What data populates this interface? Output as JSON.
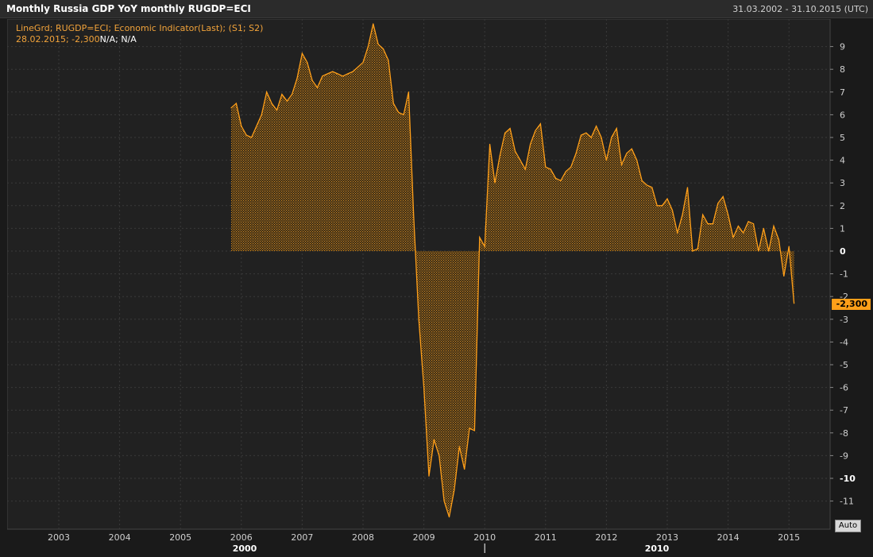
{
  "header": {
    "title": "Monthly Russia GDP YoY monthly RUGDP=ECI",
    "date_range": "31.03.2002 - 31.10.2015 (UTC)"
  },
  "legend": {
    "line1": "LineGrd; RUGDP=ECI; Economic Indicator(Last); (S1; S2)",
    "line2_value": "28.02.2015; -2,300",
    "line2_na": "N/A; N/A"
  },
  "last_value_label": "-2,300",
  "auto_button_label": "Auto",
  "colors": {
    "background": "#212121",
    "grid": "#3a3a3a",
    "series": "#ff9f19",
    "text": "#d0d0d0"
  },
  "chart_data": {
    "type": "area",
    "title": "Monthly Russia GDP YoY monthly RUGDP=ECI",
    "xlabel": "",
    "ylabel": "",
    "ylim": [
      -12,
      10
    ],
    "y_ticks": [
      9,
      8,
      7,
      6,
      5,
      4,
      3,
      2,
      1,
      0,
      -1,
      -2,
      -3,
      -4,
      -5,
      -6,
      -7,
      -8,
      -9,
      -10,
      -11
    ],
    "x_ticks": [
      "2003",
      "2004",
      "2005",
      "2006",
      "2007",
      "2008",
      "2009",
      "2010",
      "2011",
      "2012",
      "2013",
      "2014",
      "2015"
    ],
    "decade_labels": [
      "2000",
      "2010"
    ],
    "grid": true,
    "series": [
      {
        "name": "RUGDP=ECI",
        "x": [
          "2005-11",
          "2005-12",
          "2006-01",
          "2006-02",
          "2006-03",
          "2006-04",
          "2006-05",
          "2006-06",
          "2006-07",
          "2006-08",
          "2006-09",
          "2006-10",
          "2006-11",
          "2006-12",
          "2007-01",
          "2007-02",
          "2007-03",
          "2007-04",
          "2007-05",
          "2007-06",
          "2007-07",
          "2007-08",
          "2007-09",
          "2007-10",
          "2007-11",
          "2007-12",
          "2008-01",
          "2008-02",
          "2008-03",
          "2008-04",
          "2008-05",
          "2008-06",
          "2008-07",
          "2008-08",
          "2008-09",
          "2008-10",
          "2008-11",
          "2008-12",
          "2009-01",
          "2009-02",
          "2009-03",
          "2009-04",
          "2009-05",
          "2009-06",
          "2009-07",
          "2009-08",
          "2009-09",
          "2009-10",
          "2009-11",
          "2009-12",
          "2010-01",
          "2010-02",
          "2010-03",
          "2010-04",
          "2010-05",
          "2010-06",
          "2010-07",
          "2010-08",
          "2010-09",
          "2010-10",
          "2010-11",
          "2010-12",
          "2011-01",
          "2011-02",
          "2011-03",
          "2011-04",
          "2011-05",
          "2011-06",
          "2011-07",
          "2011-08",
          "2011-09",
          "2011-10",
          "2011-11",
          "2011-12",
          "2012-01",
          "2012-02",
          "2012-03",
          "2012-04",
          "2012-05",
          "2012-06",
          "2012-07",
          "2012-08",
          "2012-09",
          "2012-10",
          "2012-11",
          "2012-12",
          "2013-01",
          "2013-02",
          "2013-03",
          "2013-04",
          "2013-05",
          "2013-06",
          "2013-07",
          "2013-08",
          "2013-09",
          "2013-10",
          "2013-11",
          "2013-12",
          "2014-01",
          "2014-02",
          "2014-03",
          "2014-04",
          "2014-05",
          "2014-06",
          "2014-07",
          "2014-08",
          "2014-09",
          "2014-10",
          "2014-11",
          "2014-12",
          "2015-01",
          "2015-02"
        ],
        "values": [
          6.3,
          6.5,
          5.5,
          5.1,
          5.0,
          5.5,
          6.0,
          7.0,
          6.5,
          6.2,
          6.9,
          6.6,
          6.9,
          7.6,
          8.7,
          8.3,
          7.5,
          7.2,
          7.7,
          7.8,
          7.9,
          7.8,
          7.7,
          7.8,
          7.9,
          8.1,
          8.3,
          9.0,
          10.0,
          9.1,
          8.9,
          8.4,
          6.5,
          6.1,
          6.0,
          7.0,
          1.5,
          -3.0,
          -6.0,
          -9.9,
          -8.3,
          -9.0,
          -11.0,
          -11.7,
          -10.5,
          -8.6,
          -9.6,
          -7.8,
          -7.9,
          0.6,
          0.2,
          4.7,
          3.0,
          4.2,
          5.2,
          5.4,
          4.4,
          4.0,
          3.6,
          4.7,
          5.3,
          5.6,
          3.7,
          3.6,
          3.2,
          3.1,
          3.5,
          3.7,
          4.3,
          5.1,
          5.2,
          5.0,
          5.5,
          5.0,
          4.0,
          5.0,
          5.4,
          3.8,
          4.3,
          4.5,
          4.0,
          3.1,
          2.9,
          2.8,
          2.0,
          2.0,
          2.3,
          1.8,
          0.8,
          1.6,
          2.8,
          0.0,
          0.1,
          1.6,
          1.2,
          1.2,
          2.1,
          2.4,
          1.6,
          0.6,
          1.1,
          0.8,
          1.3,
          1.2,
          0.0,
          1.0,
          0.0,
          1.1,
          0.5,
          -1.1,
          0.2,
          -2.3
        ]
      }
    ]
  }
}
